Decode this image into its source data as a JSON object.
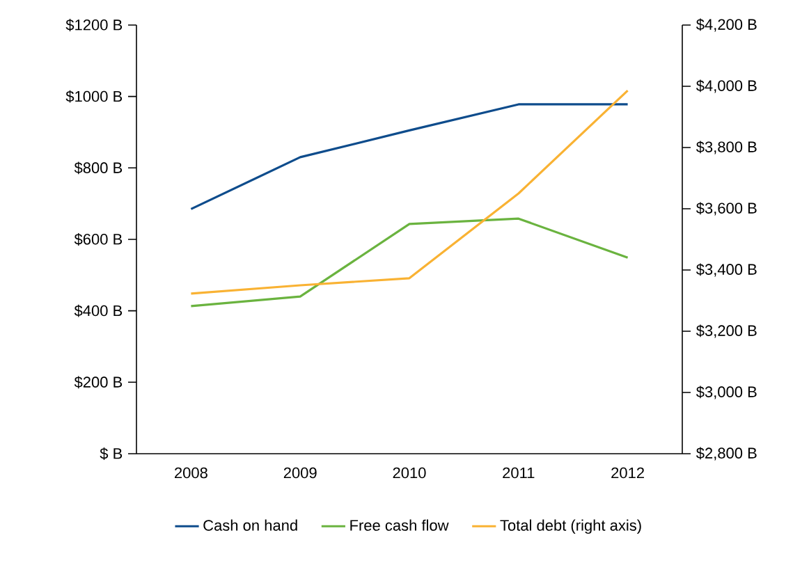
{
  "chart_data": {
    "type": "line",
    "categories": [
      "2008",
      "2009",
      "2010",
      "2011",
      "2012"
    ],
    "series": [
      {
        "name": "Cash on hand",
        "color": "#0e4c8c",
        "values": [
          685,
          830,
          905,
          978,
          978
        ]
      },
      {
        "name": "Free cash flow",
        "color": "#6ab33f",
        "values": [
          413,
          440,
          643,
          658,
          549
        ]
      },
      {
        "name": "Total debt (right axis)",
        "color": "#f9b233",
        "axis": "y2",
        "values": [
          3323,
          3350,
          3373,
          3650,
          3986
        ]
      }
    ],
    "ylim": [
      0,
      1200
    ],
    "yticks": [
      {
        "value": 0,
        "label": "$ B"
      },
      {
        "value": 200,
        "label": "$200 B"
      },
      {
        "value": 400,
        "label": "$400 B"
      },
      {
        "value": 600,
        "label": "$600 B"
      },
      {
        "value": 800,
        "label": "$800 B"
      },
      {
        "value": 1000,
        "label": "$1000 B"
      },
      {
        "value": 1200,
        "label": "$1200 B"
      }
    ],
    "y2lim": [
      2800,
      4200
    ],
    "y2ticks": [
      {
        "value": 2800,
        "label": "$2,800 B"
      },
      {
        "value": 3000,
        "label": "$3,000 B"
      },
      {
        "value": 3200,
        "label": "$3,200 B"
      },
      {
        "value": 3400,
        "label": "$3,400 B"
      },
      {
        "value": 3600,
        "label": "$3,600 B"
      },
      {
        "value": 3800,
        "label": "$3,800 B"
      },
      {
        "value": 4000,
        "label": "$4,000 B"
      },
      {
        "value": 4200,
        "label": "$4,200 B"
      }
    ],
    "grid": false,
    "legend": "bottom",
    "marker": "none",
    "line_style": "solid"
  }
}
